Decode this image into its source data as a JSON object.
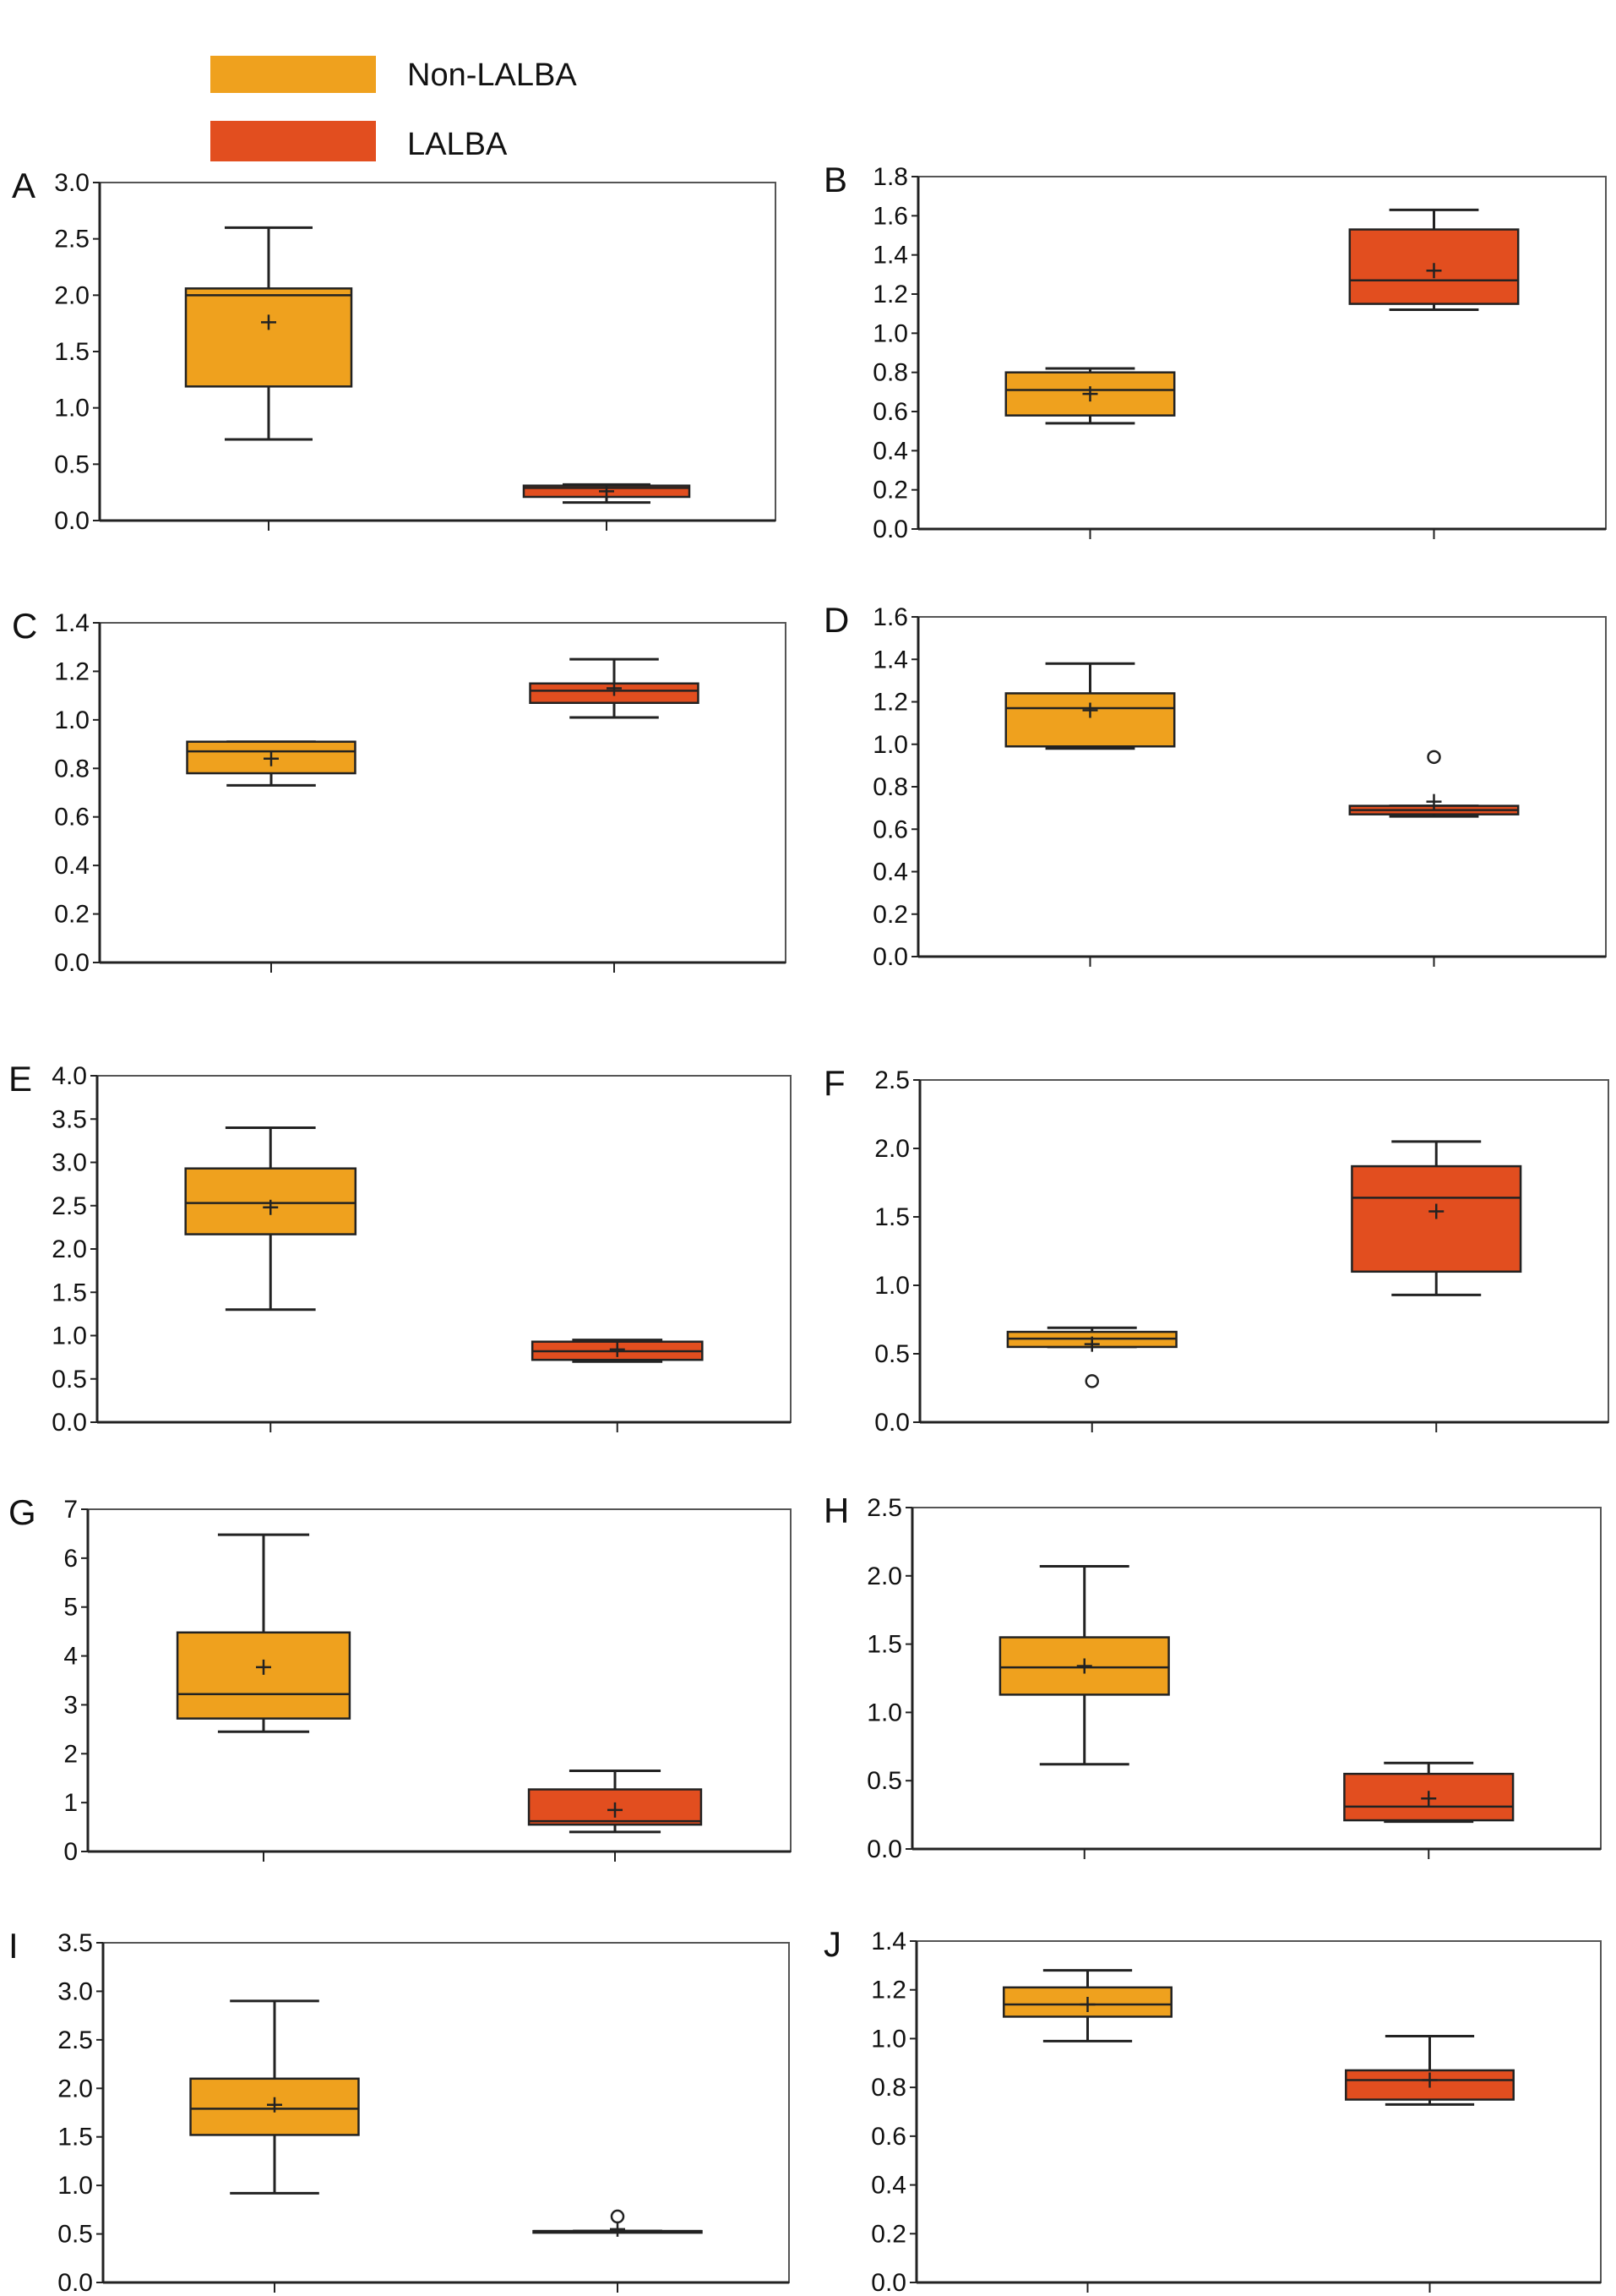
{
  "colors": {
    "non_lalba": "#EFA11E",
    "lalba": "#E24E1F",
    "stroke": "#222222"
  },
  "legend": [
    {
      "label": "Non-LALBA",
      "color": "#EFA11E"
    },
    {
      "label": "LALBA",
      "color": "#E24E1F"
    }
  ],
  "chart_data": [
    {
      "type": "box",
      "panel": "A",
      "ylim": [
        0,
        3.0
      ],
      "yticks": [
        "0.0",
        "0.5",
        "1.0",
        "1.5",
        "2.0",
        "2.5",
        "3.0"
      ],
      "tick_step": 0.5,
      "groups": [
        {
          "name": "Non-LALBA",
          "min": 0.72,
          "q1": 1.19,
          "median": 2.0,
          "q3": 2.06,
          "max": 2.6,
          "mean": 1.76,
          "outliers": []
        },
        {
          "name": "LALBA",
          "min": 0.16,
          "q1": 0.21,
          "median": 0.29,
          "q3": 0.31,
          "max": 0.32,
          "mean": 0.26,
          "outliers": []
        }
      ]
    },
    {
      "type": "box",
      "panel": "B",
      "ylim": [
        0,
        1.8
      ],
      "yticks": [
        "0.0",
        "0.2",
        "0.4",
        "0.6",
        "0.8",
        "1.0",
        "1.2",
        "1.4",
        "1.6",
        "1.8"
      ],
      "tick_step": 0.2,
      "groups": [
        {
          "name": "Non-LALBA",
          "min": 0.54,
          "q1": 0.58,
          "median": 0.71,
          "q3": 0.8,
          "max": 0.82,
          "mean": 0.69,
          "outliers": []
        },
        {
          "name": "LALBA",
          "min": 1.12,
          "q1": 1.15,
          "median": 1.27,
          "q3": 1.53,
          "max": 1.63,
          "mean": 1.32,
          "outliers": []
        }
      ]
    },
    {
      "type": "box",
      "panel": "C",
      "ylim": [
        0,
        1.4
      ],
      "yticks": [
        "0.0",
        "0.2",
        "0.4",
        "0.6",
        "0.8",
        "1.0",
        "1.2",
        "1.4"
      ],
      "tick_step": 0.2,
      "groups": [
        {
          "name": "Non-LALBA",
          "min": 0.73,
          "q1": 0.78,
          "median": 0.87,
          "q3": 0.91,
          "max": 0.91,
          "mean": 0.84,
          "outliers": []
        },
        {
          "name": "LALBA",
          "min": 1.01,
          "q1": 1.07,
          "median": 1.12,
          "q3": 1.15,
          "max": 1.25,
          "mean": 1.13,
          "outliers": []
        }
      ]
    },
    {
      "type": "box",
      "panel": "D",
      "ylim": [
        0,
        1.6
      ],
      "yticks": [
        "0.0",
        "0.2",
        "0.4",
        "0.6",
        "0.8",
        "1.0",
        "1.2",
        "1.4",
        "1.6"
      ],
      "tick_step": 0.2,
      "groups": [
        {
          "name": "Non-LALBA",
          "min": 0.98,
          "q1": 0.99,
          "median": 1.17,
          "q3": 1.24,
          "max": 1.38,
          "mean": 1.16,
          "outliers": []
        },
        {
          "name": "LALBA",
          "min": 0.66,
          "q1": 0.67,
          "median": 0.69,
          "q3": 0.71,
          "max": 0.71,
          "mean": 0.73,
          "outliers": [
            0.94
          ]
        }
      ]
    },
    {
      "type": "box",
      "panel": "E",
      "ylim": [
        0,
        4.0
      ],
      "yticks": [
        "0.0",
        "0.5",
        "1.0",
        "1.5",
        "2.0",
        "2.5",
        "3.0",
        "3.5",
        "4.0"
      ],
      "tick_step": 0.5,
      "groups": [
        {
          "name": "Non-LALBA",
          "min": 1.3,
          "q1": 2.17,
          "median": 2.53,
          "q3": 2.93,
          "max": 3.4,
          "mean": 2.48,
          "outliers": []
        },
        {
          "name": "LALBA",
          "min": 0.7,
          "q1": 0.72,
          "median": 0.82,
          "q3": 0.93,
          "max": 0.95,
          "mean": 0.84,
          "outliers": []
        }
      ]
    },
    {
      "type": "box",
      "panel": "F",
      "ylim": [
        0,
        2.5
      ],
      "yticks": [
        "0.0",
        "0.5",
        "1.0",
        "1.5",
        "2.0",
        "2.5"
      ],
      "tick_step": 0.5,
      "groups": [
        {
          "name": "Non-LALBA",
          "min": 0.55,
          "q1": 0.55,
          "median": 0.61,
          "q3": 0.66,
          "max": 0.69,
          "mean": 0.57,
          "outliers": [
            0.3
          ]
        },
        {
          "name": "LALBA",
          "min": 0.93,
          "q1": 1.1,
          "median": 1.64,
          "q3": 1.87,
          "max": 2.05,
          "mean": 1.54,
          "outliers": []
        }
      ]
    },
    {
      "type": "box",
      "panel": "G",
      "ylim": [
        0,
        7
      ],
      "yticks": [
        "0",
        "1",
        "2",
        "3",
        "4",
        "5",
        "6",
        "7"
      ],
      "tick_step": 1,
      "groups": [
        {
          "name": "Non-LALBA",
          "min": 2.45,
          "q1": 2.72,
          "median": 3.22,
          "q3": 4.48,
          "max": 6.48,
          "mean": 3.77,
          "outliers": []
        },
        {
          "name": "LALBA",
          "min": 0.4,
          "q1": 0.55,
          "median": 0.62,
          "q3": 1.27,
          "max": 1.65,
          "mean": 0.85,
          "outliers": []
        }
      ]
    },
    {
      "type": "box",
      "panel": "H",
      "ylim": [
        0,
        2.5
      ],
      "yticks": [
        "0.0",
        "0.5",
        "1.0",
        "1.5",
        "2.0",
        "2.5"
      ],
      "tick_step": 0.5,
      "groups": [
        {
          "name": "Non-LALBA",
          "min": 0.62,
          "q1": 1.13,
          "median": 1.33,
          "q3": 1.55,
          "max": 2.07,
          "mean": 1.34,
          "outliers": []
        },
        {
          "name": "LALBA",
          "min": 0.2,
          "q1": 0.21,
          "median": 0.31,
          "q3": 0.55,
          "max": 0.63,
          "mean": 0.37,
          "outliers": []
        }
      ]
    },
    {
      "type": "box",
      "panel": "I",
      "ylim": [
        0,
        3.5
      ],
      "yticks": [
        "0.0",
        "0.5",
        "1.0",
        "1.5",
        "2.0",
        "2.5",
        "3.0",
        "3.5"
      ],
      "tick_step": 0.5,
      "groups": [
        {
          "name": "Non-LALBA",
          "min": 0.92,
          "q1": 1.52,
          "median": 1.79,
          "q3": 2.1,
          "max": 2.9,
          "mean": 1.83,
          "outliers": []
        },
        {
          "name": "LALBA",
          "min": 0.53,
          "q1": 0.53,
          "median": 0.53,
          "q3": 0.53,
          "max": 0.53,
          "mean": 0.55,
          "outliers": [
            0.68
          ]
        }
      ]
    },
    {
      "type": "box",
      "panel": "J",
      "ylim": [
        0,
        1.4
      ],
      "yticks": [
        "0.0",
        "0.2",
        "0.4",
        "0.6",
        "0.8",
        "1.0",
        "1.2",
        "1.4"
      ],
      "tick_step": 0.2,
      "groups": [
        {
          "name": "Non-LALBA",
          "min": 0.99,
          "q1": 1.09,
          "median": 1.14,
          "q3": 1.21,
          "max": 1.28,
          "mean": 1.14,
          "outliers": []
        },
        {
          "name": "LALBA",
          "min": 0.73,
          "q1": 0.75,
          "median": 0.83,
          "q3": 0.87,
          "max": 1.01,
          "mean": 0.83,
          "outliers": []
        }
      ]
    }
  ]
}
